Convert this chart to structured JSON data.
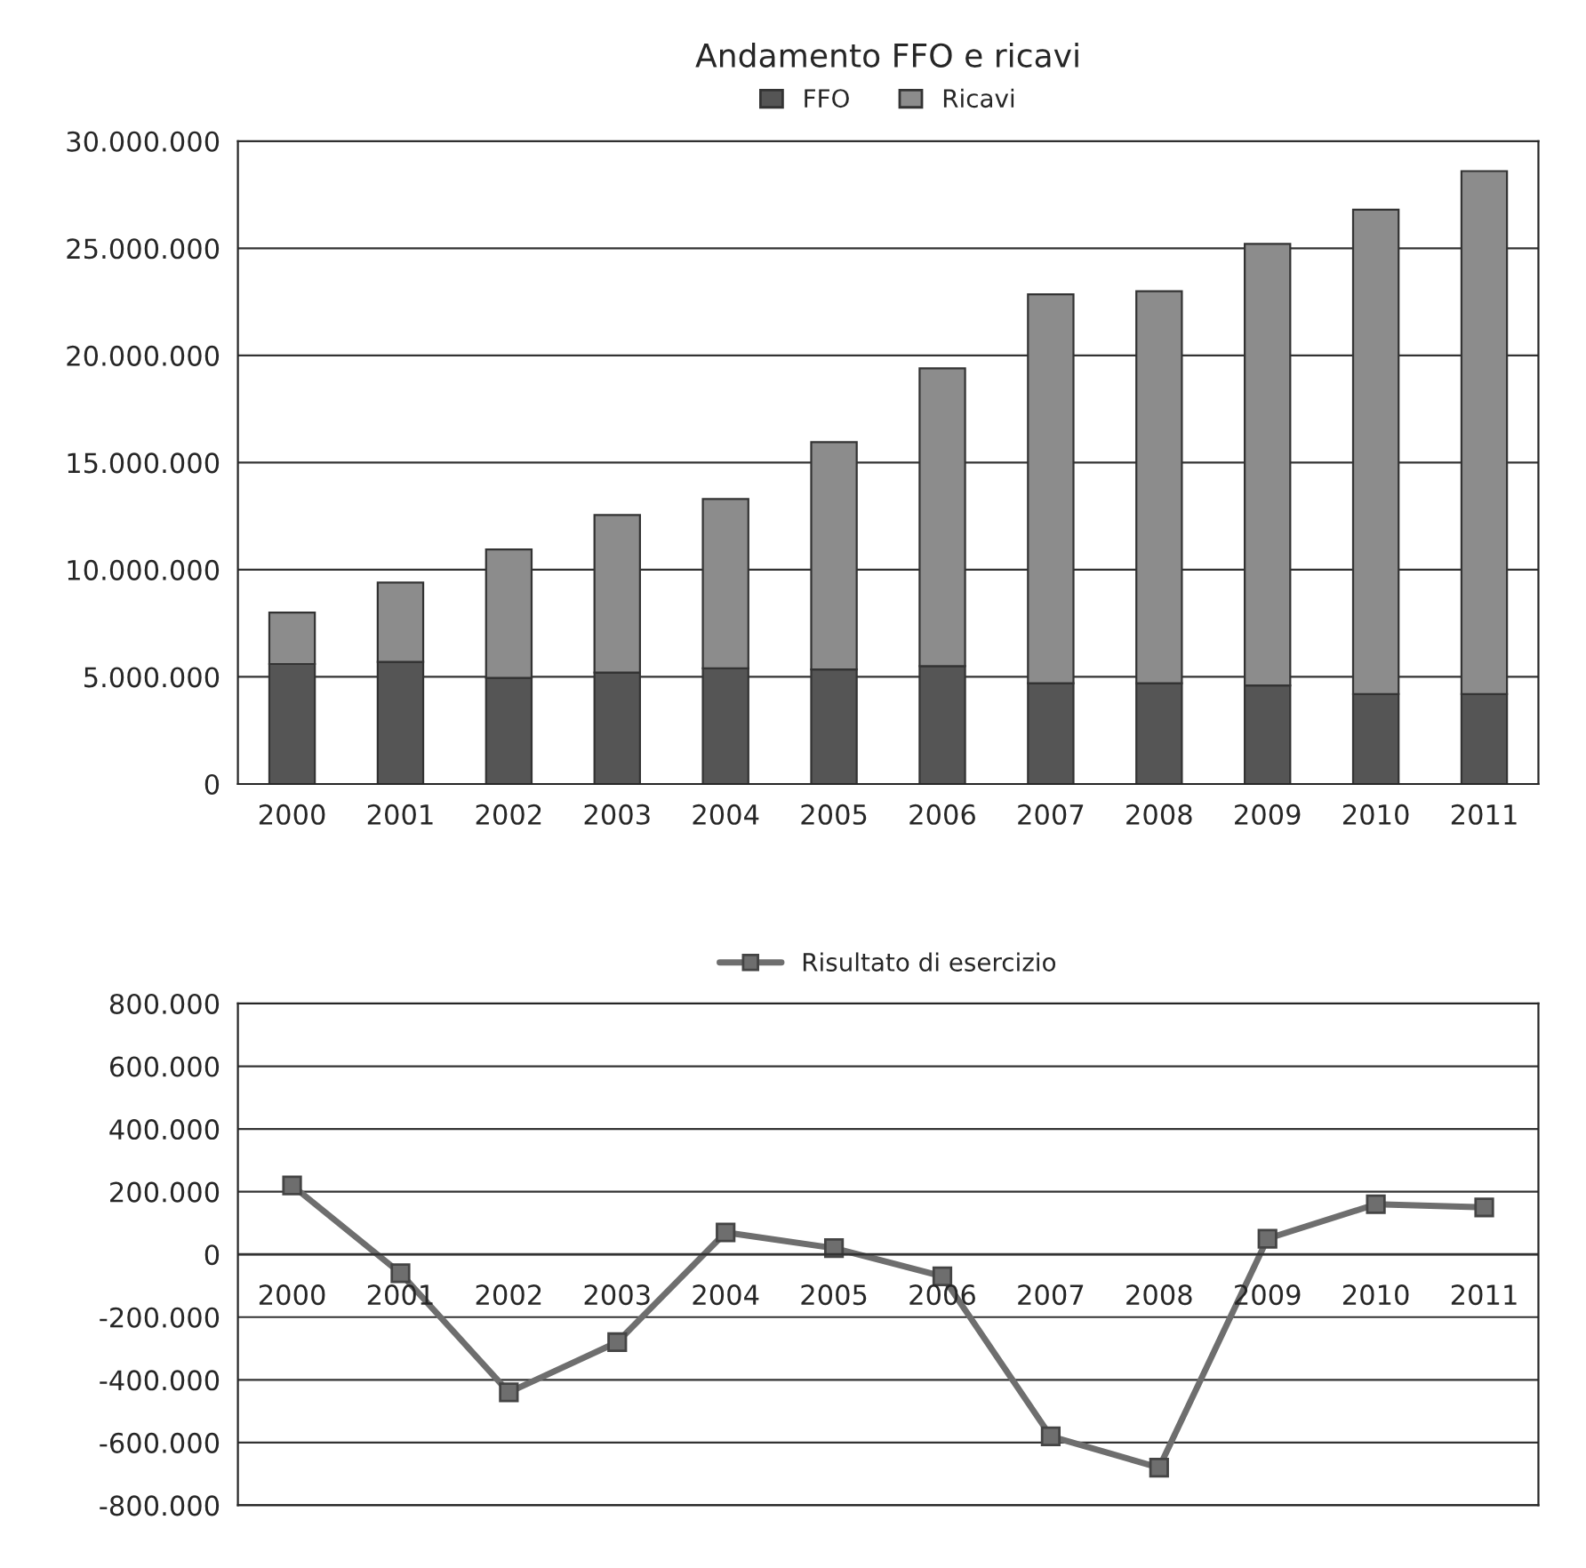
{
  "chart_data": [
    {
      "type": "bar",
      "title": "Andamento FFO e ricavi",
      "stacked": true,
      "legend": "top",
      "grid": "y",
      "categories": [
        "2000",
        "2001",
        "2002",
        "2003",
        "2004",
        "2005",
        "2006",
        "2007",
        "2008",
        "2009",
        "2010",
        "2011"
      ],
      "series": [
        {
          "name": "FFO",
          "color": "#555555",
          "values": [
            5600000,
            5700000,
            4950000,
            5200000,
            5400000,
            5350000,
            5500000,
            4700000,
            4700000,
            4600000,
            4200000,
            4200000
          ]
        },
        {
          "name": "Ricavi",
          "color": "#8c8c8c",
          "values": [
            2400000,
            3700000,
            6000000,
            7350000,
            7900000,
            10600000,
            13900000,
            18150000,
            18300000,
            20600000,
            22600000,
            24400000
          ]
        }
      ],
      "ylim": [
        0,
        30000000
      ],
      "yticks": [
        {
          "value": 0,
          "label": "0"
        },
        {
          "value": 5000000,
          "label": "5.000.000"
        },
        {
          "value": 10000000,
          "label": "10.000.000"
        },
        {
          "value": 15000000,
          "label": "15.000.000"
        },
        {
          "value": 20000000,
          "label": "20.000.000"
        },
        {
          "value": 25000000,
          "label": "25.000.000"
        },
        {
          "value": 30000000,
          "label": "30.000.000"
        }
      ]
    },
    {
      "type": "line",
      "legend": "top",
      "grid": "y",
      "marker": "square",
      "line_style": "solid",
      "categories": [
        "2000",
        "2001",
        "2002",
        "2003",
        "2004",
        "2005",
        "2006",
        "2007",
        "2008",
        "2009",
        "2010",
        "2011"
      ],
      "series": [
        {
          "name": "Risultato di esercizio",
          "color": "#6e6e6e",
          "values": [
            220000,
            -60000,
            -440000,
            -280000,
            70000,
            20000,
            -70000,
            -580000,
            -680000,
            50000,
            160000,
            150000
          ]
        }
      ],
      "ylim": [
        -800000,
        800000
      ],
      "yticks": [
        {
          "value": -800000,
          "label": "-800.000"
        },
        {
          "value": -600000,
          "label": "-600.000"
        },
        {
          "value": -400000,
          "label": "-400.000"
        },
        {
          "value": -200000,
          "label": "-200.000"
        },
        {
          "value": 0,
          "label": "0"
        },
        {
          "value": 200000,
          "label": "200.000"
        },
        {
          "value": 400000,
          "label": "400.000"
        },
        {
          "value": 600000,
          "label": "600.000"
        },
        {
          "value": 800000,
          "label": "800.000"
        }
      ]
    }
  ]
}
